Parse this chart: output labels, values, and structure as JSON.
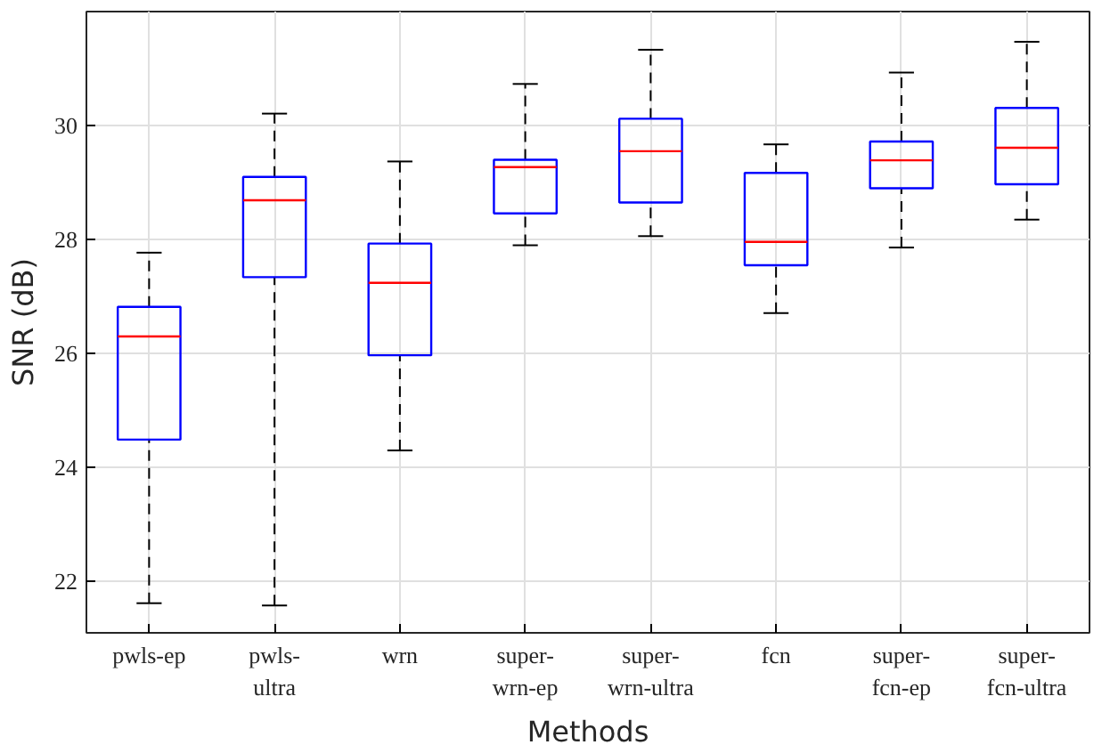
{
  "chart_data": {
    "type": "box",
    "xlabel": "Methods",
    "ylabel": "SNR (dB)",
    "categories": [
      "pwls-ep",
      "pwls-\nultra",
      "wrn",
      "super-\nwrn-ep",
      "super-\nwrn-ultra",
      "fcn",
      "super-\nfcn-ep",
      "super-\nfcn-ultra"
    ],
    "ylim": [
      21.1,
      32
    ],
    "yticks": [
      22,
      24,
      26,
      28,
      30
    ],
    "grid": true,
    "series": [
      {
        "color": "#0000ff",
        "boxes": [
          {
            "low": 21.62,
            "q1": 24.49,
            "median": 26.3,
            "q3": 26.82,
            "high": 27.77
          },
          {
            "low": 21.58,
            "q1": 27.34,
            "median": 28.69,
            "q3": 29.1,
            "high": 30.21
          },
          {
            "low": 24.3,
            "q1": 25.97,
            "median": 27.24,
            "q3": 27.93,
            "high": 29.37
          },
          {
            "low": 27.9,
            "q1": 28.46,
            "median": 29.27,
            "q3": 29.4,
            "high": 30.73
          },
          {
            "low": 28.06,
            "q1": 28.65,
            "median": 29.55,
            "q3": 30.12,
            "high": 31.33
          },
          {
            "low": 26.71,
            "q1": 27.55,
            "median": 27.96,
            "q3": 29.17,
            "high": 29.67
          },
          {
            "low": 27.86,
            "q1": 28.9,
            "median": 29.39,
            "q3": 29.72,
            "high": 30.93
          },
          {
            "low": 28.35,
            "q1": 28.97,
            "median": 29.61,
            "q3": 30.31,
            "high": 31.47
          }
        ]
      }
    ]
  }
}
